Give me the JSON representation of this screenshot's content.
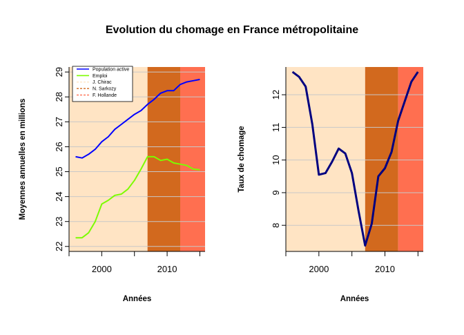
{
  "title": "Evolution du chomage en France métropolitaine",
  "chart_data": [
    {
      "type": "line",
      "xlabel": "Années",
      "ylabel": "Moyennes annuelles en millions",
      "xlim": [
        1995,
        2015.8
      ],
      "ylim": [
        21.8,
        29.2
      ],
      "x_ticks": [
        2000,
        2010
      ],
      "x_minor_ticks": [
        1995,
        2005,
        2015
      ],
      "y_ticks": [
        22,
        23,
        24,
        25,
        26,
        27,
        28,
        29
      ],
      "grid": "horizontal",
      "legend_position": "top-left",
      "periods": [
        {
          "name": "J. Chirac",
          "start": 1995,
          "end": 2007,
          "color": "#FFE4C4"
        },
        {
          "name": "N. Sarkozy",
          "start": 2007,
          "end": 2012,
          "color": "#D2691E"
        },
        {
          "name": "F. Hollande",
          "start": 2012,
          "end": 2015.8,
          "color": "#FF6F50"
        }
      ],
      "x": [
        1996,
        1997,
        1998,
        1999,
        2000,
        2001,
        2002,
        2003,
        2004,
        2005,
        2006,
        2007,
        2008,
        2009,
        2010,
        2011,
        2012,
        2013,
        2014,
        2015
      ],
      "series": [
        {
          "name": "Population active",
          "color": "#0000FF",
          "values": [
            25.6,
            25.55,
            25.7,
            25.9,
            26.2,
            26.4,
            26.7,
            26.9,
            27.1,
            27.3,
            27.45,
            27.7,
            27.9,
            28.15,
            28.25,
            28.25,
            28.5,
            28.6,
            28.65,
            28.7
          ]
        },
        {
          "name": "Emploi",
          "color": "#7CFC00",
          "values": [
            22.35,
            22.35,
            22.55,
            23.0,
            23.7,
            23.85,
            24.05,
            24.1,
            24.3,
            24.65,
            25.1,
            25.6,
            25.6,
            25.45,
            25.5,
            25.35,
            25.3,
            25.25,
            25.1,
            25.08
          ]
        }
      ]
    },
    {
      "type": "line",
      "xlabel": "Années",
      "ylabel": "Taux de chomage",
      "xlim": [
        1995,
        2015.8
      ],
      "ylim": [
        7.2,
        12.85
      ],
      "x_ticks": [
        2000,
        2010
      ],
      "x_minor_ticks": [
        1995,
        2005,
        2015
      ],
      "y_ticks": [
        8,
        9,
        10,
        11,
        12
      ],
      "grid": "horizontal",
      "periods": [
        {
          "start": 1995,
          "end": 2007,
          "color": "#FFE4C4"
        },
        {
          "start": 2007,
          "end": 2012,
          "color": "#D2691E"
        },
        {
          "start": 2012,
          "end": 2015.8,
          "color": "#FF6F50"
        }
      ],
      "x": [
        1996,
        1997,
        1998,
        1999,
        2000,
        2001,
        2002,
        2003,
        2004,
        2005,
        2006,
        2007,
        2008,
        2009,
        2010,
        2011,
        2012,
        2013,
        2014,
        2015
      ],
      "series": [
        {
          "color": "#000080",
          "values": [
            12.7,
            12.55,
            12.25,
            11.1,
            9.55,
            9.6,
            9.95,
            10.35,
            10.2,
            9.6,
            8.45,
            7.38,
            8.05,
            9.5,
            9.75,
            10.25,
            11.2,
            11.8,
            12.4,
            12.7
          ]
        }
      ]
    }
  ]
}
